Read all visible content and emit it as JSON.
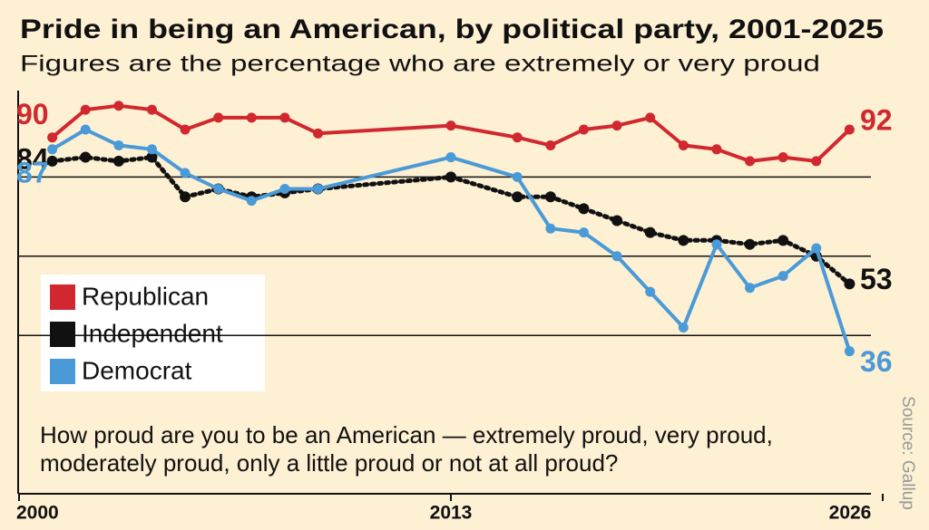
{
  "chart_data": {
    "type": "line",
    "title": "Pride in being an American, by political party, 2001-2025",
    "subtitle": "Figures are the percentage who are extremely or very proud",
    "question": "How proud are you to be an American — extremely proud, very proud, moderately proud, only a little proud or not at all proud?",
    "source": "Source: Gallup",
    "x": [
      2001,
      2002,
      2003,
      2004,
      2005,
      2006,
      2007,
      2008,
      2009,
      2013,
      2015,
      2016,
      2017,
      2018,
      2019,
      2020,
      2021,
      2022,
      2023,
      2024,
      2025
    ],
    "xlim": [
      2000,
      2026
    ],
    "xticks": [
      2000,
      2013,
      2026
    ],
    "ylim": [
      0,
      100
    ],
    "ygrid": [
      40,
      60,
      80
    ],
    "series": [
      {
        "name": "Republican",
        "color": "#d0282e",
        "style": "solid",
        "values": [
          90,
          97,
          98,
          97,
          92,
          95,
          95,
          95,
          91,
          93,
          90,
          88,
          92,
          93,
          95,
          88,
          87,
          84,
          85,
          84,
          92
        ]
      },
      {
        "name": "Independent",
        "color": "#111111",
        "style": "dotted",
        "values": [
          84,
          85,
          84,
          85,
          75,
          77,
          75,
          76,
          77,
          80,
          75,
          75,
          72,
          69,
          66,
          64,
          64,
          63,
          64,
          60,
          53
        ]
      },
      {
        "name": "Democrat",
        "color": "#4a9ad8",
        "style": "solid",
        "values": [
          87,
          92,
          88,
          87,
          81,
          77,
          74,
          77,
          77,
          85,
          80,
          67,
          66,
          60,
          51,
          42,
          63,
          52,
          55,
          62,
          36
        ]
      }
    ]
  }
}
